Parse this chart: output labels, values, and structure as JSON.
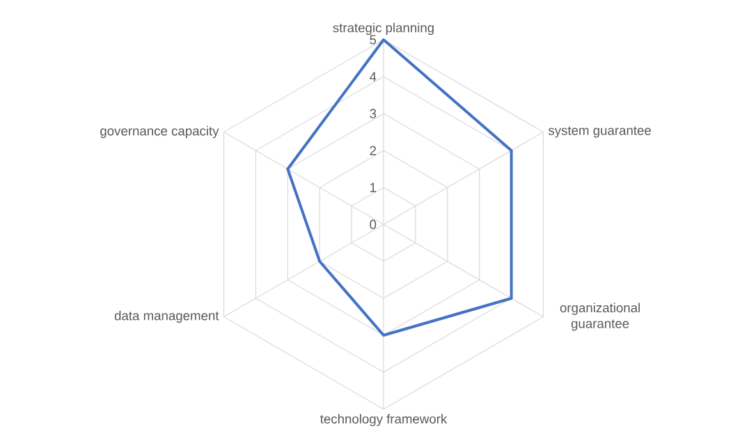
{
  "chart_data": {
    "type": "radar",
    "categories": [
      "strategic planning",
      "system guarantee",
      "organizational guarantee",
      "technology framework",
      "data management",
      "governance capacity"
    ],
    "series": [
      {
        "color": "#4472c4",
        "values": [
          5,
          4,
          4,
          3,
          2,
          3
        ]
      }
    ],
    "ylim": [
      0,
      5
    ],
    "yticks": [
      0,
      1,
      2,
      3,
      4,
      5
    ],
    "grid": true
  }
}
